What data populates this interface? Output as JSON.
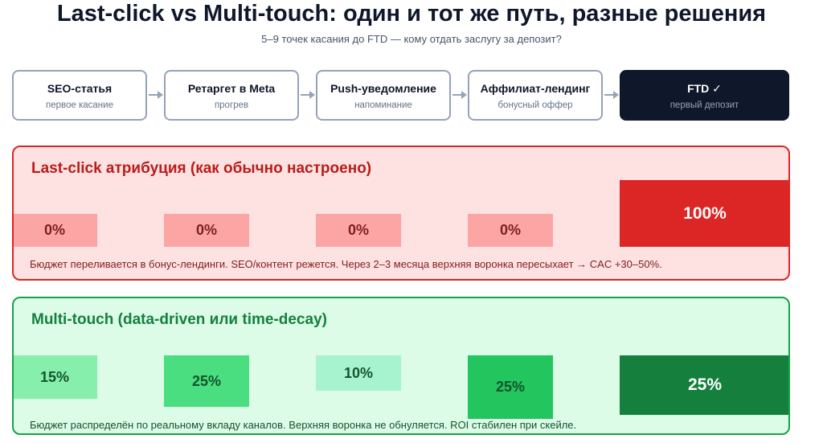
{
  "header": {
    "title": "Last-click vs Multi-touch: один и тот же путь, разные решения",
    "subtitle": "5–9 точек касания до FTD — кому отдать заслугу за депозит?"
  },
  "journey": [
    {
      "name": "SEO-статья",
      "sub": "первое касание"
    },
    {
      "name": "Ретаргет в Meta",
      "sub": "прогрев"
    },
    {
      "name": "Push-уведомление",
      "sub": "напоминание"
    },
    {
      "name": "Аффилиат-лендинг",
      "sub": "бонусный оффер"
    },
    {
      "name": "FTD ✓",
      "sub": "первый депозит"
    }
  ],
  "last_click": {
    "title": "Last-click атрибуция (как обычно настроено)",
    "values": [
      "0%",
      "0%",
      "0%",
      "0%",
      "100%"
    ],
    "note": "Бюджет переливается в бонус-лендинги. SEO/контент режется. Через 2–3 месяца верхняя воронка пересыхает → CAC +30–50%."
  },
  "multi_touch": {
    "title": "Multi-touch (data-driven или time-decay)",
    "values": [
      "15%",
      "25%",
      "10%",
      "25%",
      "25%"
    ],
    "colors": [
      "#86efac",
      "#4ade80",
      "#a7f3d0",
      "#22c55e",
      "#15803d"
    ],
    "note": "Бюджет распределён по реальному вкладу каналов. Верхняя воронка не обнуляется. ROI стабилен при скейле."
  },
  "colors": {
    "red_panel": "#fee2e2",
    "red_accent": "#dc2626",
    "green_panel": "#dcfce7",
    "green_accent": "#16a34a",
    "dark": "#0f172a"
  }
}
